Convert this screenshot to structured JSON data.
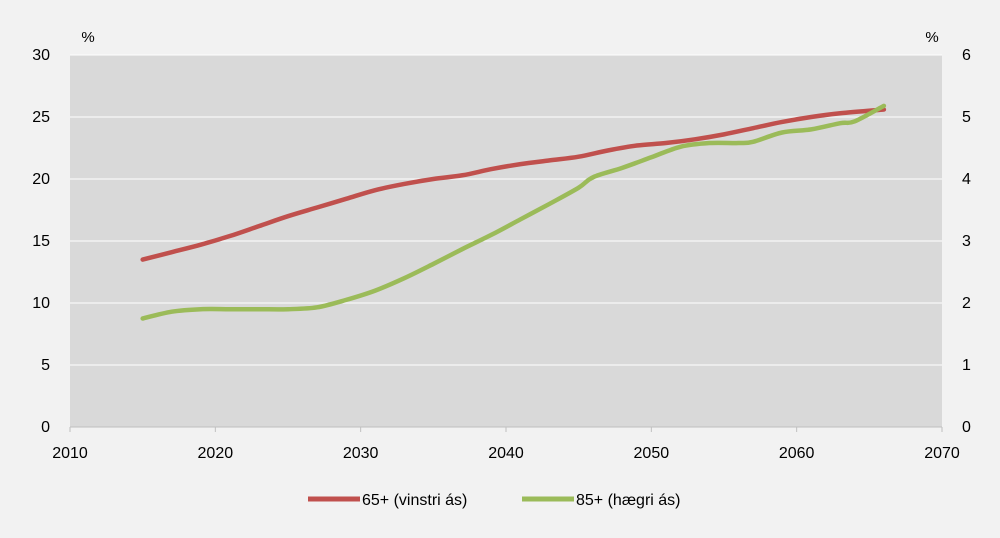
{
  "chart_data": {
    "type": "line",
    "title": "",
    "left_unit": "%",
    "right_unit": "%",
    "x_ticks": [
      2010,
      2020,
      2030,
      2040,
      2050,
      2060,
      2070
    ],
    "xlim": [
      2010,
      2070
    ],
    "ylim_left": [
      0,
      30
    ],
    "y_ticks_left": [
      0,
      5,
      10,
      15,
      20,
      25,
      30
    ],
    "ylim_right": [
      0,
      6
    ],
    "y_ticks_right": [
      0,
      1,
      2,
      3,
      4,
      5,
      6
    ],
    "grid": true,
    "legend_position": "bottom",
    "colors": {
      "plot_bg": "#d9d9d9",
      "page_bg": "#f2f2f2",
      "grid": "#ffffff"
    },
    "series": [
      {
        "name": "65+ (vinstri ás)",
        "axis": "left",
        "color": "#c0504d",
        "points": [
          [
            2015,
            13.5
          ],
          [
            2017,
            14.1
          ],
          [
            2019,
            14.7
          ],
          [
            2021,
            15.4
          ],
          [
            2023,
            16.2
          ],
          [
            2025,
            17.0
          ],
          [
            2027,
            17.7
          ],
          [
            2029,
            18.4
          ],
          [
            2031,
            19.1
          ],
          [
            2033,
            19.6
          ],
          [
            2035,
            20.0
          ],
          [
            2037,
            20.3
          ],
          [
            2039,
            20.8
          ],
          [
            2041,
            21.2
          ],
          [
            2043,
            21.5
          ],
          [
            2045,
            21.8
          ],
          [
            2047,
            22.3
          ],
          [
            2049,
            22.7
          ],
          [
            2051,
            22.9
          ],
          [
            2053,
            23.2
          ],
          [
            2055,
            23.6
          ],
          [
            2057,
            24.1
          ],
          [
            2059,
            24.6
          ],
          [
            2061,
            25.0
          ],
          [
            2063,
            25.3
          ],
          [
            2066,
            25.6
          ]
        ]
      },
      {
        "name": "85+ (hægri ás)",
        "axis": "right",
        "color": "#9bbb59",
        "points": [
          [
            2015,
            1.75
          ],
          [
            2017,
            1.86
          ],
          [
            2019,
            1.9
          ],
          [
            2021,
            1.9
          ],
          [
            2023,
            1.9
          ],
          [
            2025,
            1.9
          ],
          [
            2027,
            1.93
          ],
          [
            2029,
            2.05
          ],
          [
            2031,
            2.2
          ],
          [
            2033,
            2.4
          ],
          [
            2035,
            2.63
          ],
          [
            2037,
            2.87
          ],
          [
            2039,
            3.1
          ],
          [
            2041,
            3.35
          ],
          [
            2043,
            3.6
          ],
          [
            2045,
            3.86
          ],
          [
            2046,
            4.03
          ],
          [
            2048,
            4.18
          ],
          [
            2050,
            4.35
          ],
          [
            2052,
            4.52
          ],
          [
            2054,
            4.58
          ],
          [
            2056,
            4.58
          ],
          [
            2057,
            4.6
          ],
          [
            2059,
            4.75
          ],
          [
            2061,
            4.8
          ],
          [
            2063,
            4.9
          ],
          [
            2064,
            4.93
          ],
          [
            2066,
            5.18
          ]
        ]
      }
    ]
  }
}
